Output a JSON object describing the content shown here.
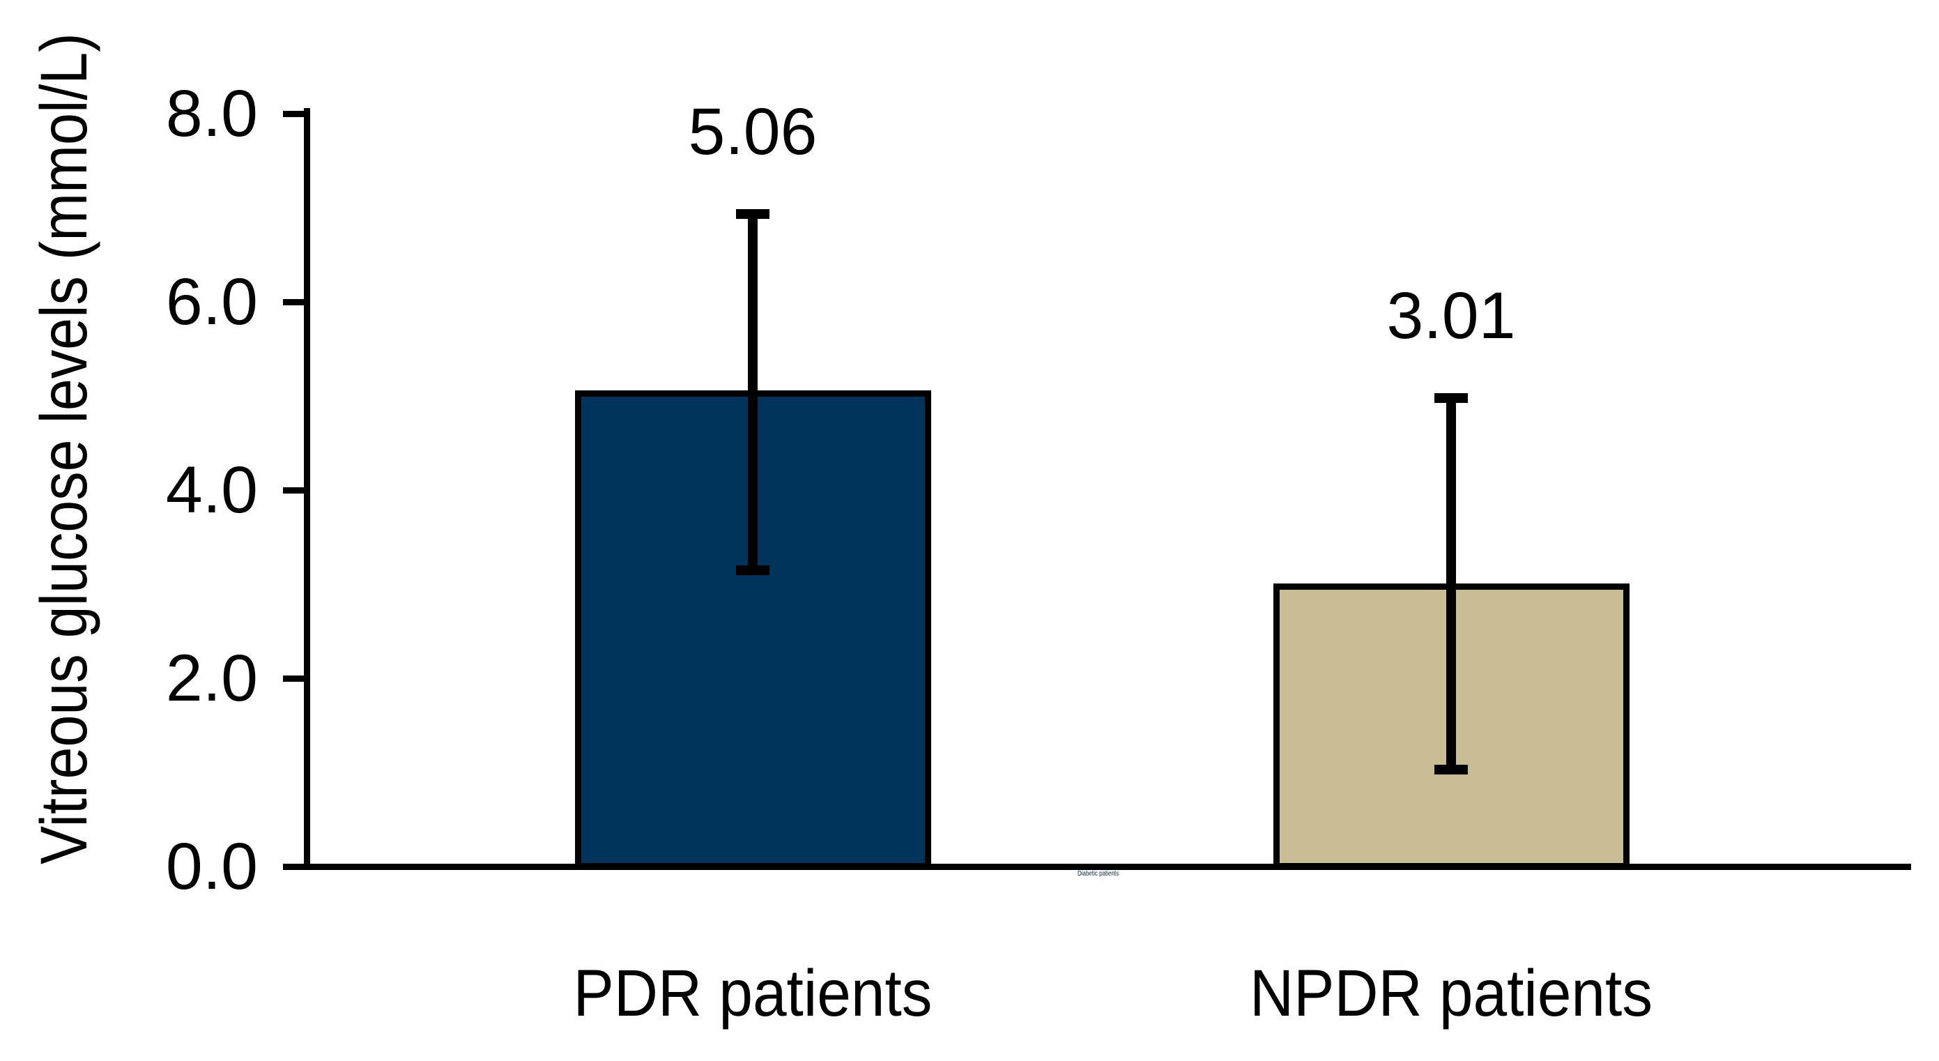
{
  "chart_data": {
    "type": "bar",
    "title": "",
    "ylabel": "Vitreous glucose levels (mmol/L)",
    "xlabel": "",
    "ylim": [
      0.0,
      8.0
    ],
    "ytick_interval": 2.0,
    "ytick_labels": [
      "0.0",
      "2.0",
      "4.0",
      "6.0",
      "8.0"
    ],
    "categories": [
      "PDR patients",
      "NPDR patients"
    ],
    "values": [
      5.06,
      3.01
    ],
    "bar_value_labels": [
      "5.06",
      "3.01"
    ],
    "error_bar_low": [
      3.15,
      1.03
    ],
    "error_bar_high": [
      6.93,
      4.98
    ],
    "bar_colors": [
      "#00335A",
      "#C8BD94"
    ],
    "bar_outline_color": "#000000",
    "axis_color": "#000000",
    "grid": false,
    "legend_position": "none"
  },
  "fine_print": {
    "tiny_caption": "Diabetic patients"
  }
}
